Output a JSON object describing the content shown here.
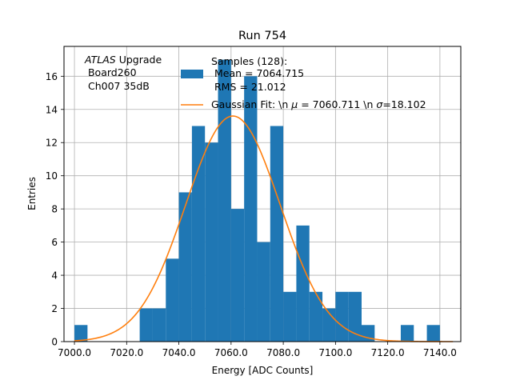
{
  "chart_data": {
    "type": "histogram",
    "title": "Run 754",
    "xlabel": "Energy [ADC Counts]",
    "ylabel": "Entries",
    "xlim": [
      6996,
      7148
    ],
    "ylim": [
      0,
      17.8
    ],
    "x_ticks": [
      7000,
      7020,
      7040,
      7060,
      7080,
      7100,
      7120,
      7140
    ],
    "x_tick_labels": [
      "7000.0",
      "7020.0",
      "7040.0",
      "7060.0",
      "7080.0",
      "7100.0",
      "7120.0",
      "7140.0"
    ],
    "y_ticks": [
      0,
      2,
      4,
      6,
      8,
      10,
      12,
      14,
      16
    ],
    "y_tick_labels": [
      "0",
      "2",
      "4",
      "6",
      "8",
      "10",
      "12",
      "14",
      "16"
    ],
    "grid": true,
    "bins": {
      "left_edges": [
        7000.0,
        7005.0,
        7010.0,
        7015.0,
        7020.0,
        7025.0,
        7030.0,
        7035.0,
        7040.0,
        7045.0,
        7050.0,
        7055.0,
        7060.0,
        7065.0,
        7070.0,
        7075.0,
        7080.0,
        7085.0,
        7090.0,
        7095.0,
        7100.0,
        7105.0,
        7110.0,
        7115.0,
        7120.0,
        7125.0,
        7130.0,
        7135.0
      ],
      "width": 5.0,
      "counts": [
        1,
        0,
        0,
        0,
        0,
        2,
        2,
        5,
        9,
        13,
        12,
        17,
        8,
        16,
        6,
        13,
        3,
        7,
        3,
        2,
        3,
        3,
        1,
        0,
        0,
        1,
        0,
        1
      ]
    },
    "fit": {
      "name": "Gaussian Fit",
      "mu": 7060.711,
      "sigma": 18.102,
      "amplitude": 13.6,
      "x_range": [
        7000,
        7145
      ],
      "color": "#ff7f0e"
    },
    "samples": {
      "count": 128,
      "mean": 7064.715,
      "rms": 21.012
    },
    "bar_color": "#1f77b4",
    "annotation": {
      "line1_italic": "ATLAS",
      "line1_rest": " Upgrade",
      "line2": " Board260",
      "line3": " Ch007 35dB"
    },
    "legend": {
      "location": "top-right",
      "hist_label_lines": [
        "Samples (128):",
        "Mean = 7064.715",
        "RMS = 21.012"
      ],
      "fit_label_prefix": "Gaussian Fit: \\n ",
      "fit_label_mu": "μ",
      "fit_label_mid": " = 7060.711 \\n ",
      "fit_label_sigma": "σ",
      "fit_label_suffix": "=18.102"
    }
  }
}
